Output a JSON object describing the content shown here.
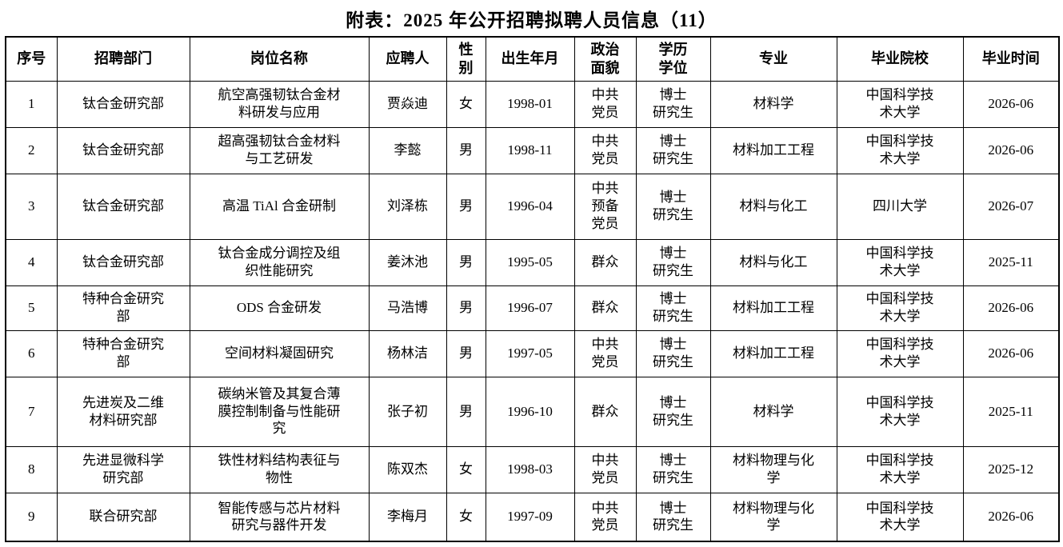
{
  "page": {
    "title": "附表：2025 年公开招聘拟聘人员信息（11）"
  },
  "table": {
    "columns": [
      "序号",
      "招聘部门",
      "岗位名称",
      "应聘人",
      "性别",
      "出生年月",
      "政治面貌",
      "学历学位",
      "专业",
      "毕业院校",
      "毕业时间"
    ],
    "header_display": [
      "序号",
      "招聘部门",
      "岗位名称",
      "应聘人",
      "性\n别",
      "出生年月",
      "政治\n面貌",
      "学历\n学位",
      "专业",
      "毕业院校",
      "毕业时间"
    ],
    "rows": [
      [
        "1",
        "钛合金研究部",
        "航空高强韧钛合金材\n料研发与应用",
        "贾焱迪",
        "女",
        "1998-01",
        "中共\n党员",
        "博士\n研究生",
        "材料学",
        "中国科学技\n术大学",
        "2026-06"
      ],
      [
        "2",
        "钛合金研究部",
        "超高强韧钛合金材料\n与工艺研发",
        "李懿",
        "男",
        "1998-11",
        "中共\n党员",
        "博士\n研究生",
        "材料加工工程",
        "中国科学技\n术大学",
        "2026-06"
      ],
      [
        "3",
        "钛合金研究部",
        "高温 TiAl 合金研制",
        "刘泽栋",
        "男",
        "1996-04",
        "中共\n预备\n党员",
        "博士\n研究生",
        "材料与化工",
        "四川大学",
        "2026-07"
      ],
      [
        "4",
        "钛合金研究部",
        "钛合金成分调控及组\n织性能研究",
        "姜沐池",
        "男",
        "1995-05",
        "群众",
        "博士\n研究生",
        "材料与化工",
        "中国科学技\n术大学",
        "2025-11"
      ],
      [
        "5",
        "特种合金研究\n部",
        "ODS 合金研发",
        "马浩博",
        "男",
        "1996-07",
        "群众",
        "博士\n研究生",
        "材料加工工程",
        "中国科学技\n术大学",
        "2026-06"
      ],
      [
        "6",
        "特种合金研究\n部",
        "空间材料凝固研究",
        "杨林洁",
        "男",
        "1997-05",
        "中共\n党员",
        "博士\n研究生",
        "材料加工工程",
        "中国科学技\n术大学",
        "2026-06"
      ],
      [
        "7",
        "先进炭及二维\n材料研究部",
        "碳纳米管及其复合薄\n膜控制制备与性能研\n究",
        "张子初",
        "男",
        "1996-10",
        "群众",
        "博士\n研究生",
        "材料学",
        "中国科学技\n术大学",
        "2025-11"
      ],
      [
        "8",
        "先进显微科学\n研究部",
        "铁性材料结构表征与\n物性",
        "陈双杰",
        "女",
        "1998-03",
        "中共\n党员",
        "博士\n研究生",
        "材料物理与化\n学",
        "中国科学技\n术大学",
        "2025-12"
      ],
      [
        "9",
        "联合研究部",
        "智能传感与芯片材料\n研究与器件开发",
        "李梅月",
        "女",
        "1997-09",
        "中共\n党员",
        "博士\n研究生",
        "材料物理与化\n学",
        "中国科学技\n术大学",
        "2026-06"
      ]
    ]
  }
}
